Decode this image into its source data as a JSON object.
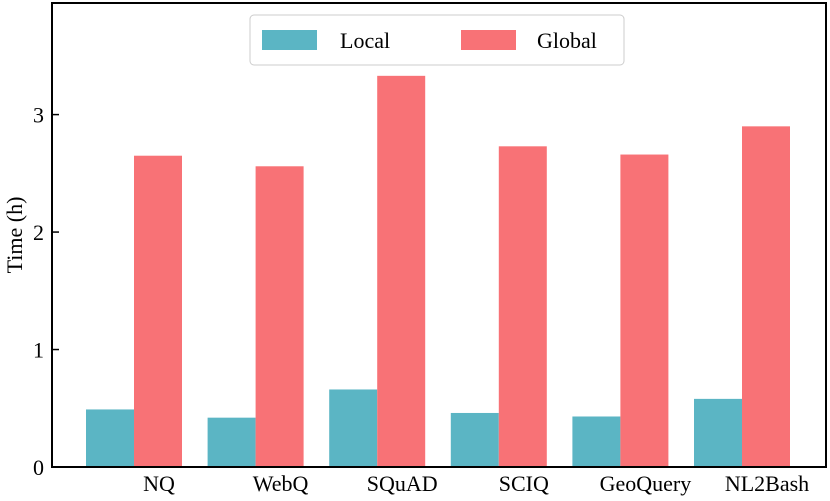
{
  "chart_data": {
    "type": "bar",
    "categories": [
      "NQ",
      "WebQ",
      "SQuAD",
      "SCIQ",
      "GeoQuery",
      "NL2Bash"
    ],
    "series": [
      {
        "name": "Local",
        "values": [
          0.49,
          0.42,
          0.66,
          0.46,
          0.43,
          0.58
        ]
      },
      {
        "name": "Global",
        "values": [
          2.65,
          2.56,
          3.33,
          2.73,
          2.66,
          2.9
        ]
      }
    ],
    "xlabel": "",
    "ylabel": "Time (h)",
    "ylim": [
      0,
      3.95
    ],
    "yticks": [
      "0",
      "1",
      "2",
      "3"
    ],
    "legend": "upper center",
    "grid": false,
    "colors": {
      "Local": "#5bb5c4",
      "Global": "#f87276"
    }
  }
}
